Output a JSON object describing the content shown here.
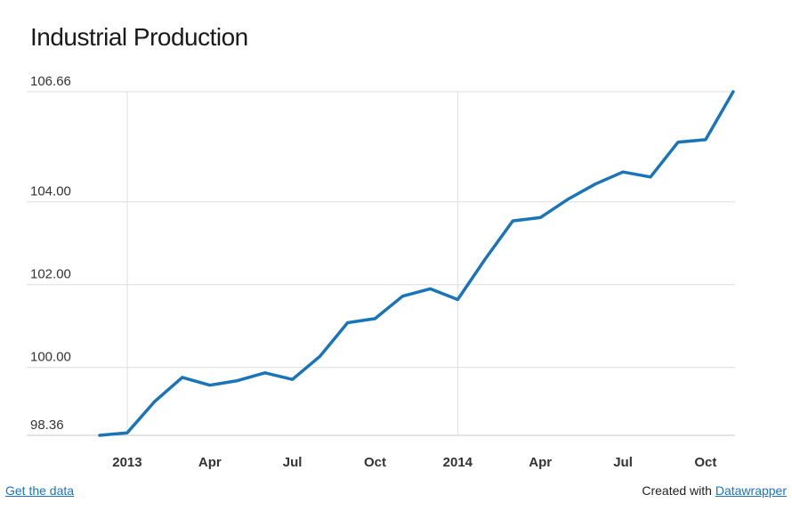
{
  "footer": {
    "get_data_label": "Get the data",
    "credit_prefix": "Created with",
    "credit_link_label": "Datawrapper"
  },
  "chart_data": {
    "type": "line",
    "title": "Industrial Production",
    "xlabel": "",
    "ylabel": "",
    "x": [
      "2012-12",
      "2013-01",
      "2013-02",
      "2013-03",
      "2013-04",
      "2013-05",
      "2013-06",
      "2013-07",
      "2013-08",
      "2013-09",
      "2013-10",
      "2013-11",
      "2013-12",
      "2014-01",
      "2014-02",
      "2014-03",
      "2014-04",
      "2014-05",
      "2014-06",
      "2014-07",
      "2014-08",
      "2014-09",
      "2014-10",
      "2014-11"
    ],
    "series": [
      {
        "values": [
          98.36,
          98.42,
          99.18,
          99.76,
          99.57,
          99.68,
          99.87,
          99.71,
          100.27,
          101.08,
          101.18,
          101.72,
          101.9,
          101.64,
          102.62,
          103.54,
          103.62,
          104.06,
          104.43,
          104.72,
          104.6,
          105.44,
          105.5,
          106.66
        ],
        "color": "#1a74b8"
      }
    ],
    "y_ticks": [
      {
        "value": 98.36,
        "label": "98.36"
      },
      {
        "value": 100.0,
        "label": "100.00"
      },
      {
        "value": 102.0,
        "label": "102.00"
      },
      {
        "value": 104.0,
        "label": "104.00"
      },
      {
        "value": 106.66,
        "label": "106.66"
      }
    ],
    "x_ticks": [
      {
        "x": "2013-01",
        "label": "2013",
        "bold": true,
        "year_line": true
      },
      {
        "x": "2013-04",
        "label": "Apr",
        "bold": false,
        "year_line": false
      },
      {
        "x": "2013-07",
        "label": "Jul",
        "bold": false,
        "year_line": false
      },
      {
        "x": "2013-10",
        "label": "Oct",
        "bold": false,
        "year_line": false
      },
      {
        "x": "2014-01",
        "label": "2014",
        "bold": true,
        "year_line": true
      },
      {
        "x": "2014-04",
        "label": "Apr",
        "bold": false,
        "year_line": false
      },
      {
        "x": "2014-07",
        "label": "Jul",
        "bold": false,
        "year_line": false
      },
      {
        "x": "2014-10",
        "label": "Oct",
        "bold": false,
        "year_line": false
      }
    ],
    "ylim": [
      98.36,
      106.66
    ],
    "grid": true,
    "colors": {
      "line": "#1a74b8",
      "grid": "#dddddd",
      "axis_text": "#333333"
    }
  }
}
